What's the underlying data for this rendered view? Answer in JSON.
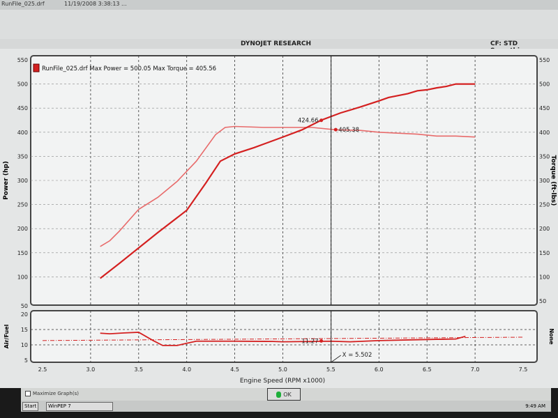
{
  "window": {
    "file_row": {
      "name": "RunFile_025.drf",
      "date": "11/19/2008 3:38:13 ..."
    },
    "header_title": "DYNOJET RESEARCH",
    "header_right": "CF: STD  Smoothing:",
    "maximize_label": "Maximize Graph(s)",
    "ok_label": "OK",
    "taskbar": {
      "start": "Start",
      "app": "WinPEP 7",
      "clock": "9:49 AM"
    }
  },
  "chart_data": [
    {
      "type": "line",
      "legend": "RunFile_025.drf Max Power = 500.05 Max Torque = 405.56",
      "ylabel": "Power (hp)",
      "y2label": "Torque (ft-lbs)",
      "xlim": [
        2.5,
        7.5
      ],
      "ylim": [
        50,
        550
      ],
      "y2lim": [
        50,
        550
      ],
      "yticks": [
        100,
        150,
        200,
        250,
        300,
        350,
        400,
        450,
        500,
        550
      ],
      "y2ticks": [
        50,
        100,
        150,
        200,
        250,
        300,
        350,
        400,
        450,
        500,
        550
      ],
      "grid": true,
      "colors": {
        "power": "#d42020",
        "torque": "#e86a6a"
      },
      "series": [
        {
          "name": "Power",
          "x": [
            3.1,
            3.3,
            3.5,
            3.7,
            4.0,
            4.2,
            4.35,
            4.5,
            4.7,
            5.0,
            5.2,
            5.4,
            5.6,
            5.8,
            6.0,
            6.1,
            6.2,
            6.3,
            6.4,
            6.5,
            6.6,
            6.7,
            6.8,
            6.9,
            7.0
          ],
          "y": [
            97,
            128,
            160,
            192,
            238,
            295,
            340,
            355,
            368,
            390,
            405,
            425,
            440,
            452,
            465,
            472,
            476,
            480,
            486,
            488,
            492,
            495,
            500,
            500,
            500
          ]
        },
        {
          "name": "Torque",
          "x": [
            3.1,
            3.2,
            3.3,
            3.5,
            3.7,
            3.9,
            4.1,
            4.3,
            4.4,
            4.5,
            4.8,
            5.0,
            5.3,
            5.55,
            5.8,
            6.0,
            6.2,
            6.4,
            6.6,
            6.8,
            7.0
          ],
          "y": [
            163,
            175,
            195,
            240,
            265,
            298,
            340,
            395,
            410,
            412,
            410,
            410,
            410,
            405,
            404,
            400,
            398,
            396,
            392,
            392,
            390
          ]
        }
      ],
      "annotations": [
        {
          "text": "424.66",
          "x": 5.4,
          "y": 424.66
        },
        {
          "text": "405.38",
          "x": 5.55,
          "y": 405.38
        }
      ],
      "cursor_x": 5.502
    },
    {
      "type": "line",
      "ylabel": "Air/Fuel",
      "y2label": "None",
      "xlabel": "Engine Speed (RPM x1000)",
      "xlim": [
        2.5,
        7.5
      ],
      "ylim": [
        5,
        20
      ],
      "yticks": [
        5,
        10,
        15,
        20
      ],
      "xticks": [
        "2.5",
        "3.0",
        "3.5",
        "4.0",
        "4.5",
        "5.0",
        "5.5",
        "6.0",
        "6.5",
        "7.0",
        "7.5"
      ],
      "top_tick": "50",
      "series": [
        {
          "name": "Air/Fuel",
          "x": [
            3.1,
            3.2,
            3.35,
            3.5,
            3.65,
            3.75,
            3.9,
            4.0,
            4.1,
            4.5,
            4.9,
            5.0,
            5.5,
            5.7,
            6.0,
            6.3,
            6.6,
            6.8,
            6.9
          ],
          "y": [
            13.8,
            13.6,
            13.9,
            14.1,
            11.4,
            9.8,
            9.8,
            10.5,
            11.2,
            11.2,
            11.1,
            11.0,
            11.2,
            11.0,
            11.4,
            11.6,
            11.8,
            11.9,
            12.8
          ]
        },
        {
          "name": "Reference",
          "x": [
            2.5,
            7.5
          ],
          "y": [
            11.4,
            12.5
          ]
        }
      ],
      "annotations": [
        {
          "text": "11.27",
          "x": 5.4,
          "y": 11.27
        },
        {
          "text": "X = 5.502",
          "x": 5.502,
          "y": 5
        }
      ]
    }
  ]
}
